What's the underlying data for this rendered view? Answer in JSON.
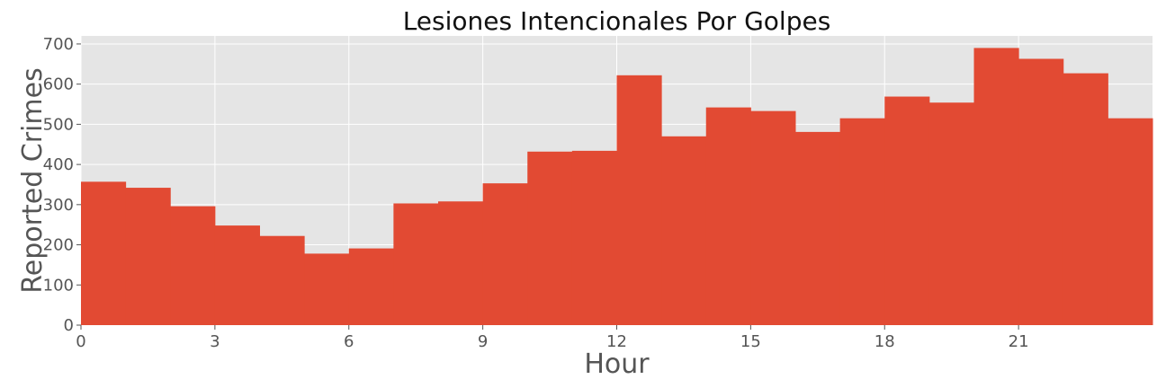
{
  "chart_data": {
    "type": "bar",
    "title": "Lesiones Intencionales Por Golpes",
    "xlabel": "Hour",
    "ylabel": "Reported Crimes",
    "x": [
      0,
      1,
      2,
      3,
      4,
      5,
      6,
      7,
      8,
      9,
      10,
      11,
      12,
      13,
      14,
      15,
      16,
      17,
      18,
      19,
      20,
      21,
      22,
      23
    ],
    "values": [
      357,
      342,
      296,
      248,
      222,
      178,
      191,
      303,
      308,
      353,
      432,
      434,
      622,
      470,
      542,
      533,
      481,
      515,
      569,
      554,
      690,
      663,
      627,
      515
    ],
    "xlim": [
      0,
      24
    ],
    "ylim": [
      0,
      720
    ],
    "xticks": [
      "0",
      "3",
      "6",
      "9",
      "12",
      "15",
      "18",
      "21"
    ],
    "yticks": [
      "0",
      "100",
      "200",
      "300",
      "400",
      "500",
      "600",
      "700"
    ],
    "grid": true,
    "colors": {
      "bar": "#e24a33",
      "background": "#e5e5e5",
      "grid": "#ffffff"
    }
  }
}
